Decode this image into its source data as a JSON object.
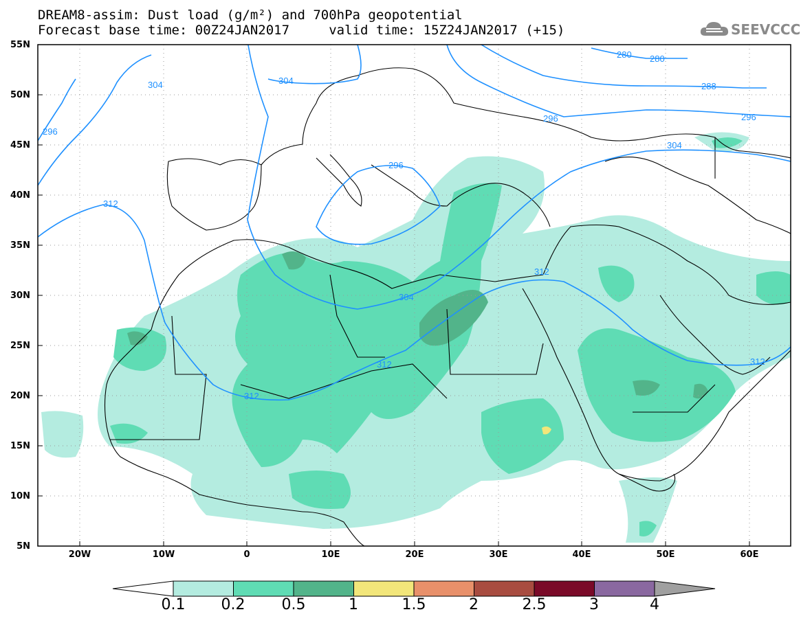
{
  "title": {
    "line1": "DREAM8-assim: Dust load (g/m²) and 700hPa geopotential",
    "line2": "Forecast base time: 00Z24JAN2017     valid time: 15Z24JAN2017 (+15)"
  },
  "logo": {
    "text": "SEEVCCC",
    "icon": "cloud-icon"
  },
  "axes": {
    "lat_labels": [
      "55N",
      "50N",
      "45N",
      "40N",
      "35N",
      "30N",
      "25N",
      "20N",
      "15N",
      "10N",
      "5N"
    ],
    "lon_labels": [
      "20W",
      "10W",
      "0",
      "10E",
      "20E",
      "30E",
      "40E",
      "50E",
      "60E"
    ]
  },
  "contours": {
    "color": "#1e90ff",
    "labels": [
      "304",
      "296",
      "304",
      "312",
      "296",
      "280",
      "280",
      "288",
      "296",
      "304",
      "296",
      "312",
      "304",
      "312",
      "312",
      "312"
    ]
  },
  "colorbar": {
    "labels": [
      "0.1",
      "0.2",
      "0.5",
      "1",
      "1.5",
      "2",
      "2.5",
      "3",
      "4"
    ],
    "colors": [
      "#ffffff",
      "#b4ece0",
      "#5fdcb4",
      "#52b48a",
      "#f2e67a",
      "#e8906a",
      "#a84c40",
      "#7a0a28",
      "#8a68a0",
      "#a0a0a0"
    ]
  }
}
